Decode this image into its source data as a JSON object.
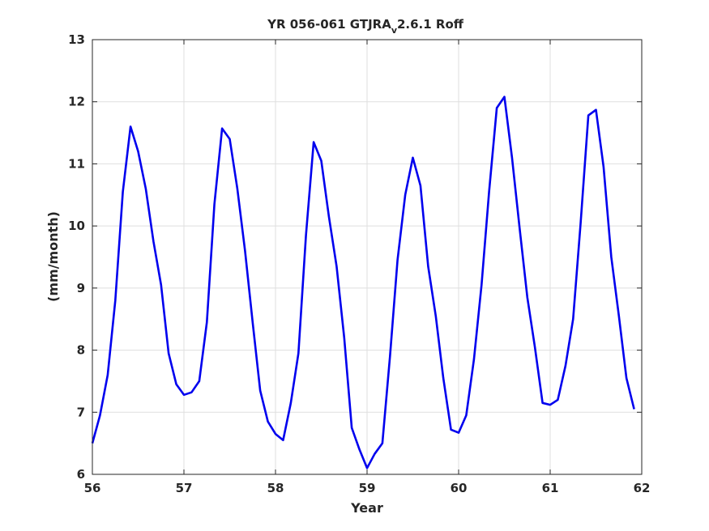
{
  "chart_data": {
    "type": "line",
    "title": "YR 056-061 GTJRA",
    "title_subscript": "v",
    "title_suffix": "2.6.1 Roff",
    "xlabel": "Year",
    "ylabel": "(mm/month)",
    "xlim": [
      56,
      62
    ],
    "ylim": [
      6,
      13
    ],
    "xticks": [
      56,
      57,
      58,
      59,
      60,
      61,
      62
    ],
    "yticks": [
      6,
      7,
      8,
      9,
      10,
      11,
      12,
      13
    ],
    "grid": true,
    "series": [
      {
        "color": "#0000ee",
        "x": [
          56.0,
          56.083,
          56.167,
          56.25,
          56.333,
          56.417,
          56.5,
          56.583,
          56.667,
          56.75,
          56.833,
          56.917,
          57.0,
          57.083,
          57.167,
          57.25,
          57.333,
          57.417,
          57.5,
          57.583,
          57.667,
          57.75,
          57.833,
          57.917,
          58.0,
          58.083,
          58.167,
          58.25,
          58.333,
          58.417,
          58.5,
          58.583,
          58.667,
          58.75,
          58.833,
          58.917,
          59.0,
          59.083,
          59.167,
          59.25,
          59.333,
          59.417,
          59.5,
          59.583,
          59.667,
          59.75,
          59.833,
          59.917,
          60.0,
          60.083,
          60.167,
          60.25,
          60.333,
          60.417,
          60.5,
          60.583,
          60.667,
          60.75,
          60.833,
          60.917,
          61.0,
          61.083,
          61.167,
          61.25,
          61.333,
          61.417,
          61.5,
          61.583,
          61.667,
          61.75,
          61.833,
          61.917
        ],
        "y": [
          6.5,
          6.95,
          7.6,
          8.8,
          10.55,
          11.6,
          11.2,
          10.6,
          9.75,
          9.05,
          7.95,
          7.45,
          7.28,
          7.32,
          7.5,
          8.45,
          10.35,
          11.57,
          11.4,
          10.6,
          9.6,
          8.45,
          7.35,
          6.85,
          6.65,
          6.55,
          7.15,
          7.95,
          9.85,
          11.35,
          11.05,
          10.15,
          9.35,
          8.2,
          6.75,
          6.4,
          6.1,
          6.33,
          6.5,
          7.9,
          9.45,
          10.5,
          11.1,
          10.65,
          9.35,
          8.55,
          7.55,
          6.72,
          6.67,
          6.95,
          7.85,
          9.05,
          10.55,
          11.9,
          12.08,
          11.1,
          9.95,
          8.85,
          8.05,
          7.15,
          7.12,
          7.2,
          7.75,
          8.5,
          10.05,
          11.78,
          11.87,
          10.95,
          9.5,
          8.55,
          7.55,
          7.05
        ]
      }
    ]
  }
}
